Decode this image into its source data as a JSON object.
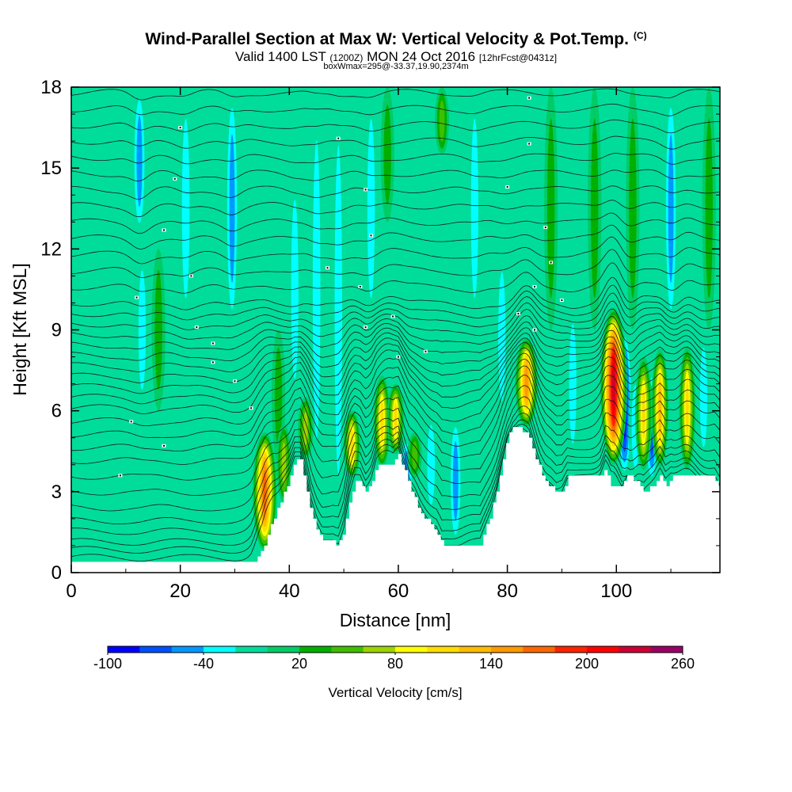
{
  "header": {
    "title": "Wind-Parallel Section at Max W: Vertical Velocity & Pot.Temp.",
    "title_suffix": "(C)",
    "valid_prefix": "Valid 1400 LST",
    "valid_z": "(1200Z)",
    "valid_date": "MON 24 Oct 2016",
    "forecast": "[12hrFcst@0431z]",
    "box_info": "boxWmax=295@-33.37,19.90,2374m"
  },
  "chart_data": {
    "type": "heatmap",
    "xlabel": "Distance [nm]",
    "ylabel": "Height [Kft MSL]",
    "xlim": [
      0,
      119
    ],
    "ylim": [
      0,
      18
    ],
    "x_ticks": [
      0,
      20,
      40,
      60,
      80,
      100
    ],
    "y_ticks": [
      0,
      3,
      6,
      9,
      12,
      15,
      18
    ],
    "colorbar": {
      "label": "Vertical Velocity [cm/s]",
      "tick_labels": [
        "-100",
        "-40",
        "20",
        "80",
        "140",
        "200",
        "260"
      ],
      "levels": [
        -100,
        -80,
        -60,
        -40,
        -20,
        0,
        20,
        40,
        60,
        80,
        100,
        120,
        140,
        160,
        180,
        200,
        220,
        240,
        260
      ],
      "colors": [
        "#0000ff",
        "#0050ff",
        "#0098ff",
        "#00ffff",
        "#00dd9a",
        "#00cc66",
        "#00b000",
        "#3fbf00",
        "#9cd400",
        "#ffff00",
        "#ffdd00",
        "#ffbb00",
        "#ff9900",
        "#ff6600",
        "#ff2200",
        "#ff0000",
        "#cc0033",
        "#990066"
      ]
    },
    "background_color": "#00dd9a",
    "terrain_kft": [
      [
        0,
        0.3
      ],
      [
        33,
        0.3
      ],
      [
        35,
        0.8
      ],
      [
        37,
        2.0
      ],
      [
        38,
        2.4
      ],
      [
        40,
        3.4
      ],
      [
        41,
        4.2
      ],
      [
        42,
        4.2
      ],
      [
        43,
        3.2
      ],
      [
        44,
        2.2
      ],
      [
        45,
        1.6
      ],
      [
        46,
        1.2
      ],
      [
        48,
        1.2
      ],
      [
        49,
        1.0
      ],
      [
        50,
        1.5
      ],
      [
        51,
        2.6
      ],
      [
        52,
        3.3
      ],
      [
        53,
        3.4
      ],
      [
        54,
        3.0
      ],
      [
        55,
        3.3
      ],
      [
        56,
        3.9
      ],
      [
        59,
        3.9
      ],
      [
        60,
        4.4
      ],
      [
        61,
        3.9
      ],
      [
        62,
        3.2
      ],
      [
        63,
        2.8
      ],
      [
        64,
        2.3
      ],
      [
        65,
        2.0
      ],
      [
        66,
        1.8
      ],
      [
        67,
        1.6
      ],
      [
        68,
        1.0
      ],
      [
        75,
        1.0
      ],
      [
        76,
        1.6
      ],
      [
        77,
        2.2
      ],
      [
        78,
        3.0
      ],
      [
        79,
        4.1
      ],
      [
        80,
        5.0
      ],
      [
        81,
        5.4
      ],
      [
        82,
        5.4
      ],
      [
        83,
        5.2
      ],
      [
        84,
        5.0
      ],
      [
        85,
        4.4
      ],
      [
        86,
        3.8
      ],
      [
        87,
        3.4
      ],
      [
        88,
        3.2
      ],
      [
        89,
        2.9
      ],
      [
        90,
        3.0
      ],
      [
        91,
        3.5
      ],
      [
        97,
        3.5
      ],
      [
        98,
        3.8
      ],
      [
        99,
        3.2
      ],
      [
        101,
        3.2
      ],
      [
        102,
        3.6
      ],
      [
        104,
        3.3
      ],
      [
        105,
        3.0
      ],
      [
        107,
        3.3
      ],
      [
        108,
        3.6
      ],
      [
        109,
        3.2
      ],
      [
        110,
        3.5
      ],
      [
        118,
        3.5
      ],
      [
        119,
        3.0
      ]
    ],
    "updraft_cores": [
      {
        "x": 35.5,
        "y0": 0.8,
        "y1": 5.2,
        "w": 175
      },
      {
        "x": 39,
        "y0": 2.6,
        "y1": 5.5,
        "w": 60
      },
      {
        "x": 43,
        "y0": 4.2,
        "y1": 6.5,
        "w": 70
      },
      {
        "x": 51.5,
        "y0": 3.5,
        "y1": 6.0,
        "w": 110
      },
      {
        "x": 57,
        "y0": 3.9,
        "y1": 7.3,
        "w": 110
      },
      {
        "x": 59.5,
        "y0": 4.4,
        "y1": 7.0,
        "w": 110
      },
      {
        "x": 63,
        "y0": 3.5,
        "y1": 5.2,
        "w": 50
      },
      {
        "x": 83.5,
        "y0": 5.4,
        "y1": 8.7,
        "w": 140
      },
      {
        "x": 99.5,
        "y0": 4.0,
        "y1": 9.8,
        "w": 235
      },
      {
        "x": 105,
        "y0": 3.8,
        "y1": 8.0,
        "w": 110
      },
      {
        "x": 108,
        "y0": 3.9,
        "y1": 8.3,
        "w": 120
      },
      {
        "x": 113,
        "y0": 3.8,
        "y1": 8.4,
        "w": 100
      }
    ],
    "downdraft_cores": [
      {
        "x": 12.5,
        "y0": 12.5,
        "y1": 18,
        "w": -50
      },
      {
        "x": 13,
        "y0": 6,
        "y1": 12,
        "w": -20
      },
      {
        "x": 21,
        "y0": 9,
        "y1": 18,
        "w": -30
      },
      {
        "x": 29.5,
        "y0": 9,
        "y1": 18,
        "w": -40
      },
      {
        "x": 41,
        "y0": 6,
        "y1": 15,
        "w": -20
      },
      {
        "x": 45,
        "y0": 3,
        "y1": 18,
        "w": -35
      },
      {
        "x": 49,
        "y0": 1.5,
        "y1": 18,
        "w": -25
      },
      {
        "x": 55,
        "y0": 9,
        "y1": 18,
        "w": -25
      },
      {
        "x": 61.5,
        "y0": 2.5,
        "y1": 5,
        "w": -55
      },
      {
        "x": 66,
        "y0": 2,
        "y1": 6,
        "w": -35
      },
      {
        "x": 70.5,
        "y0": 1.0,
        "y1": 5.8,
        "w": -40
      },
      {
        "x": 74,
        "y0": 9,
        "y1": 18,
        "w": -20
      },
      {
        "x": 79,
        "y0": 5.5,
        "y1": 12,
        "w": -20
      },
      {
        "x": 92,
        "y0": 4,
        "y1": 10,
        "w": -20
      },
      {
        "x": 101.5,
        "y0": 3.5,
        "y1": 9,
        "w": -90
      },
      {
        "x": 103.5,
        "y0": 3.3,
        "y1": 7.5,
        "w": -30
      },
      {
        "x": 106.5,
        "y0": 3.3,
        "y1": 7.5,
        "w": -60
      },
      {
        "x": 110,
        "y0": 9,
        "y1": 18,
        "w": -40
      },
      {
        "x": 116,
        "y0": 4,
        "y1": 9,
        "w": -20
      }
    ],
    "green_bands": [
      {
        "x": 68,
        "y0": 15.5,
        "y1": 18,
        "w": 40
      },
      {
        "x": 58,
        "y0": 13,
        "y1": 18,
        "w": 25
      },
      {
        "x": 88,
        "y0": 9,
        "y1": 18,
        "w": 25
      },
      {
        "x": 96,
        "y0": 9,
        "y1": 18,
        "w": 25
      },
      {
        "x": 103,
        "y0": 9,
        "y1": 18,
        "w": 25
      },
      {
        "x": 117,
        "y0": 9,
        "y1": 18,
        "w": 25
      },
      {
        "x": 38,
        "y0": 4,
        "y1": 9,
        "w": 25
      },
      {
        "x": 16,
        "y0": 6,
        "y1": 12,
        "w": 25
      }
    ],
    "theta_isentropes_kft": [
      0.3,
      0.6,
      0.9,
      1.3,
      1.7,
      2.2,
      2.8,
      3.4,
      4.0,
      4.5,
      5.0,
      5.5,
      6.0,
      6.4,
      6.8,
      7.2,
      7.6,
      8.0,
      8.4,
      8.8,
      9.2,
      9.6,
      10.0,
      10.6,
      11.2,
      11.8,
      12.4,
      13.0,
      13.6,
      14.2,
      14.8,
      15.4,
      16.0,
      16.6,
      17.2,
      17.8
    ],
    "theta_labels": [
      {
        "x": 9,
        "y": 3.6
      },
      {
        "x": 11,
        "y": 5.6
      },
      {
        "x": 17,
        "y": 4.7
      },
      {
        "x": 12,
        "y": 10.2
      },
      {
        "x": 17,
        "y": 12.7
      },
      {
        "x": 19,
        "y": 14.6
      },
      {
        "x": 20,
        "y": 16.5
      },
      {
        "x": 22,
        "y": 11.0
      },
      {
        "x": 23,
        "y": 9.1
      },
      {
        "x": 26,
        "y": 8.5
      },
      {
        "x": 26,
        "y": 7.8
      },
      {
        "x": 30,
        "y": 7.1
      },
      {
        "x": 33,
        "y": 6.1
      },
      {
        "x": 47,
        "y": 11.3
      },
      {
        "x": 49,
        "y": 16.1
      },
      {
        "x": 53,
        "y": 10.6
      },
      {
        "x": 54,
        "y": 14.2
      },
      {
        "x": 54,
        "y": 9.1
      },
      {
        "x": 55,
        "y": 12.5
      },
      {
        "x": 59,
        "y": 9.5
      },
      {
        "x": 60,
        "y": 8.0
      },
      {
        "x": 65,
        "y": 8.2
      },
      {
        "x": 80,
        "y": 14.3
      },
      {
        "x": 82,
        "y": 9.6
      },
      {
        "x": 84,
        "y": 17.6
      },
      {
        "x": 84,
        "y": 15.9
      },
      {
        "x": 85,
        "y": 10.6
      },
      {
        "x": 85,
        "y": 9.0
      },
      {
        "x": 87,
        "y": 12.8
      },
      {
        "x": 88,
        "y": 11.5
      },
      {
        "x": 90,
        "y": 10.1
      }
    ]
  }
}
